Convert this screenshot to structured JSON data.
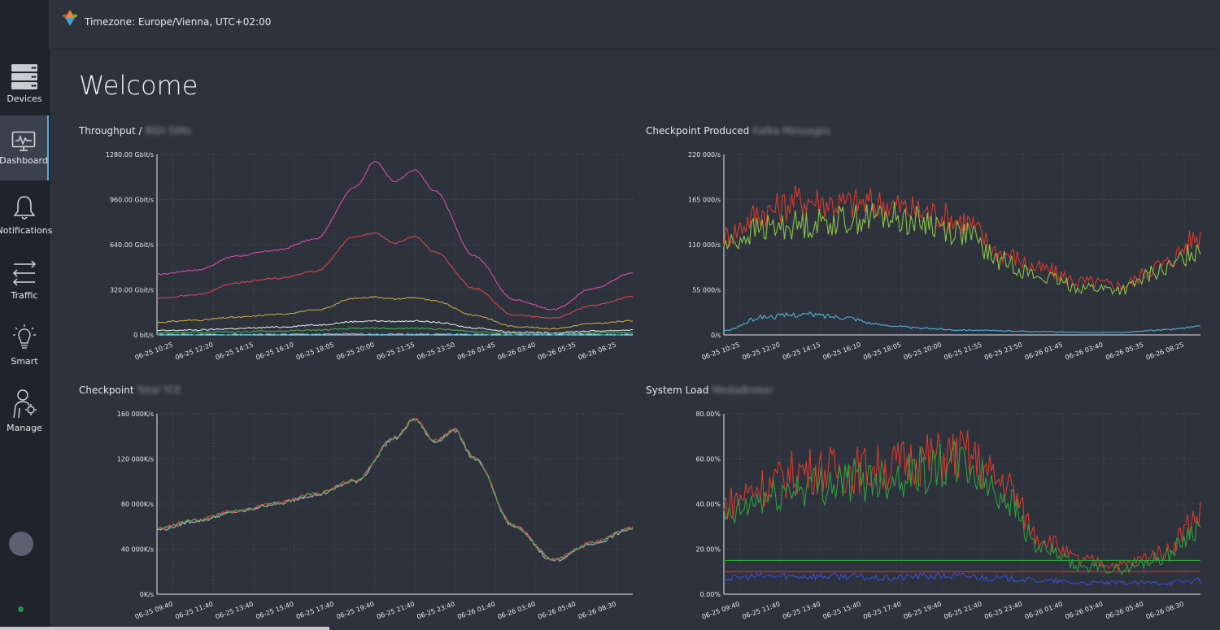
{
  "header": {
    "timezone": "Timezone: Europe/Vienna, UTC+02:00"
  },
  "sidebar": {
    "items": [
      {
        "label": "Devices",
        "icon": "server-icon"
      },
      {
        "label": "Dashboard",
        "icon": "monitor-icon",
        "active": true
      },
      {
        "label": "Notifications",
        "icon": "bell-icon"
      },
      {
        "label": "Traffic",
        "icon": "arrows-icon"
      },
      {
        "label": "Smart",
        "icon": "lightbulb-icon"
      },
      {
        "label": "Manage",
        "icon": "user-gear-icon"
      }
    ]
  },
  "main": {
    "title": "Welcome"
  },
  "panels": [
    {
      "title": "Throughput /",
      "subtitle": "BIDI SIMs"
    },
    {
      "title": "Checkpoint Produced",
      "subtitle": "Kafka Messages"
    },
    {
      "title": "Checkpoint",
      "subtitle": "Total TCE"
    },
    {
      "title": "System Load",
      "subtitle": "MediaBroker"
    }
  ],
  "chart_data": [
    {
      "type": "line",
      "title": "Throughput /",
      "ylim": [
        0,
        1280
      ],
      "y_ticks": [
        "1280.00 Gbit/s",
        "960.00 Gbit/s",
        "640.00 Gbit/s",
        "320.00 Gbit/s",
        "0 bit/s"
      ],
      "x_ticks": [
        "06-25 10:25",
        "06-25 12:20",
        "06-25 14:15",
        "06-25 16:10",
        "06-25 18:05",
        "06-25 20:00",
        "06-25 21:55",
        "06-25 23:50",
        "06-26 01:45",
        "06-26 03:40",
        "06-26 05:35",
        "06-26 08:25"
      ],
      "x": [
        0,
        1,
        2,
        3,
        4,
        5,
        5.5,
        6,
        6.5,
        7,
        8,
        9,
        10,
        11,
        12
      ],
      "series": [
        {
          "color": "#d94fa3",
          "values": [
            430,
            460,
            560,
            600,
            680,
            1050,
            1230,
            1090,
            1170,
            1020,
            560,
            250,
            180,
            330,
            440
          ]
        },
        {
          "color": "#d9454a",
          "values": [
            260,
            285,
            370,
            400,
            450,
            700,
            720,
            650,
            700,
            590,
            330,
            140,
            120,
            210,
            270
          ]
        },
        {
          "color": "#c9a83d",
          "values": [
            90,
            105,
            125,
            145,
            175,
            260,
            270,
            255,
            265,
            240,
            140,
            60,
            45,
            80,
            100
          ]
        },
        {
          "color": "#e0e0e0",
          "values": [
            30,
            35,
            45,
            55,
            70,
            95,
            100,
            95,
            100,
            90,
            50,
            20,
            15,
            28,
            35
          ]
        },
        {
          "color": "#4caf50",
          "values": [
            15,
            18,
            22,
            27,
            34,
            45,
            48,
            45,
            48,
            42,
            24,
            10,
            8,
            14,
            18
          ]
        },
        {
          "color": "#4fb3d9",
          "values": [
            3,
            3,
            4,
            4,
            5,
            6,
            6,
            6,
            6,
            5,
            4,
            2,
            2,
            3,
            3
          ]
        }
      ]
    },
    {
      "type": "line",
      "title": "Checkpoint Produced",
      "ylim": [
        0,
        220
      ],
      "y_ticks": [
        "220 000/s",
        "165 000/s",
        "110 000/s",
        "55 000/s",
        "0/s"
      ],
      "x_ticks": [
        "06-25 10:25",
        "06-25 12:20",
        "06-25 14:15",
        "06-25 16:10",
        "06-25 18:05",
        "06-25 20:00",
        "06-25 21:55",
        "06-25 23:50",
        "06-26 01:45",
        "06-26 03:40",
        "06-26 05:35",
        "06-26 08:25"
      ],
      "x": [
        0,
        1,
        2,
        3,
        4,
        5,
        6,
        7,
        8,
        9,
        10,
        11,
        12
      ],
      "series": [
        {
          "color": "#d93a2b",
          "values": [
            120,
            150,
            165,
            160,
            160,
            150,
            140,
            100,
            80,
            65,
            60,
            85,
            120
          ]
        },
        {
          "color": "#8bc34a",
          "values": [
            110,
            130,
            135,
            140,
            145,
            138,
            125,
            90,
            70,
            58,
            55,
            78,
            105
          ]
        },
        {
          "color": "#4fb3d9",
          "values": [
            5,
            22,
            25,
            22,
            12,
            8,
            6,
            5,
            4,
            3,
            3,
            6,
            10
          ]
        }
      ]
    },
    {
      "type": "line",
      "title": "Checkpoint",
      "ylim": [
        0,
        160
      ],
      "y_ticks": [
        "160 000K/s",
        "120 000K/s",
        "80 000K/s",
        "40 000K/s",
        "0K/s"
      ],
      "x_ticks": [
        "06-25 09:40",
        "06-25 11:40",
        "06-25 13:40",
        "06-25 15:40",
        "06-25 17:40",
        "06-25 19:40",
        "06-25 21:40",
        "06-25 23:40",
        "06-26 01:40",
        "06-26 03:40",
        "06-26 05:40",
        "06-26 08:30"
      ],
      "x": [
        0,
        1,
        2,
        3,
        4,
        5,
        6,
        6.5,
        7,
        7.5,
        8,
        9,
        10,
        11,
        12
      ],
      "series": [
        {
          "color": "#c9a7d8",
          "values": [
            57,
            65,
            73,
            80,
            88,
            100,
            138,
            155,
            135,
            145,
            120,
            60,
            30,
            45,
            58
          ]
        },
        {
          "color": "#d9454a",
          "values": [
            58,
            66,
            74,
            81,
            89,
            101,
            139,
            156,
            136,
            146,
            121,
            61,
            31,
            46,
            59
          ]
        },
        {
          "color": "#4caf50",
          "values": [
            57.5,
            65.5,
            73.5,
            80.5,
            88.5,
            100.5,
            138.5,
            155.5,
            135.5,
            145.5,
            120.5,
            60.5,
            30.5,
            45.5,
            58.5
          ]
        }
      ]
    },
    {
      "type": "line",
      "title": "System Load",
      "ylim": [
        0,
        80
      ],
      "y_ticks": [
        "80.00%",
        "60.00%",
        "40.00%",
        "20.00%",
        "0.00%"
      ],
      "x_ticks": [
        "06-25 09:40",
        "06-25 11:40",
        "06-25 13:40",
        "06-25 15:40",
        "06-25 17:40",
        "06-25 19:40",
        "06-25 21:40",
        "06-25 23:40",
        "06-26 01:40",
        "06-26 03:40",
        "06-26 05:40",
        "06-26 08:30"
      ],
      "x": [
        0,
        1,
        2,
        3,
        4,
        5,
        6,
        7,
        8,
        9,
        10,
        11,
        12
      ],
      "series": [
        {
          "color": "#d93a2b",
          "values": [
            40,
            48,
            55,
            55,
            56,
            60,
            62,
            50,
            25,
            15,
            13,
            18,
            35
          ]
        },
        {
          "color": "#2e9e3f",
          "values": [
            33,
            42,
            48,
            50,
            52,
            55,
            57,
            45,
            20,
            12,
            11,
            16,
            30
          ]
        },
        {
          "color": "#3a4fd1",
          "values": [
            7,
            8,
            8,
            8,
            7,
            8,
            8,
            7,
            6,
            5,
            5,
            5,
            6
          ]
        },
        {
          "color": "#2e9e3f",
          "values": [
            15,
            15,
            15,
            15,
            15,
            15,
            15,
            15,
            15,
            15,
            15,
            15,
            15
          ]
        },
        {
          "color": "#d93a2b",
          "values": [
            10,
            10,
            10,
            10,
            10,
            10,
            10,
            10,
            10,
            10,
            10,
            10,
            10
          ]
        }
      ]
    }
  ]
}
